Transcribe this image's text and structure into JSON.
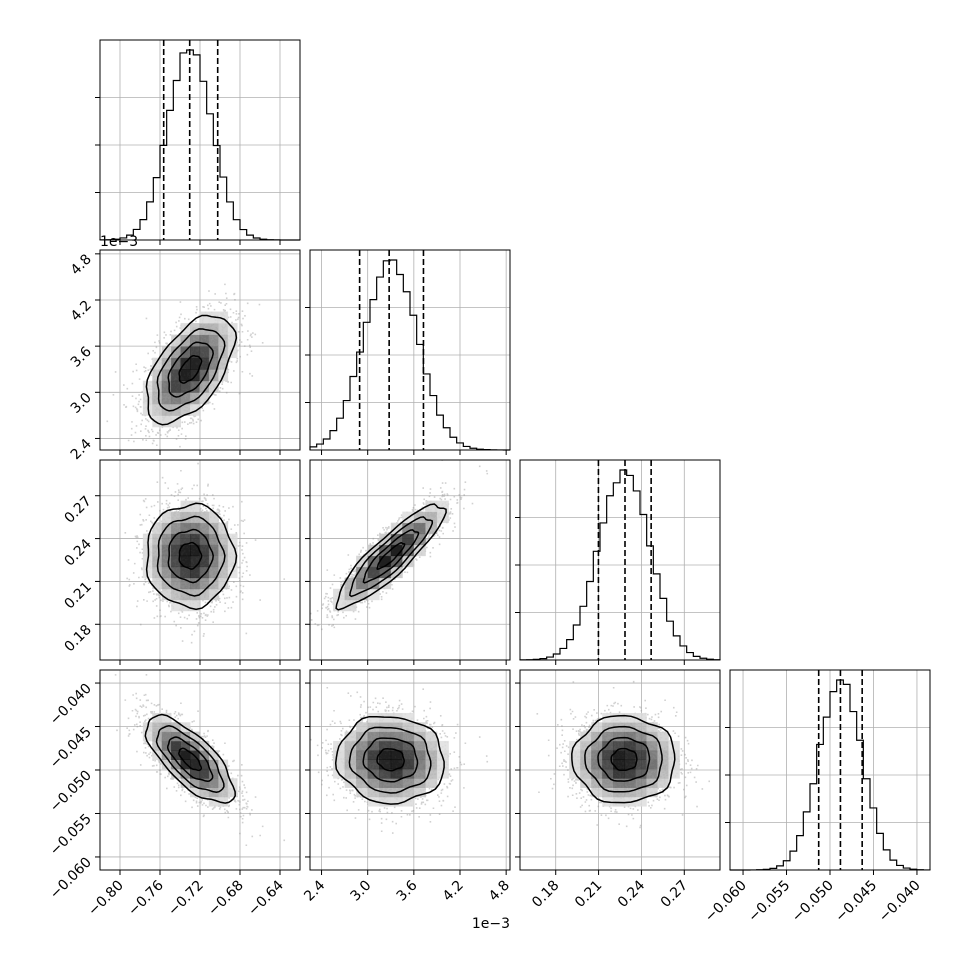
{
  "chart_data": {
    "type": "corner",
    "grid": true,
    "parameters": [
      {
        "index": 0,
        "range": [
          -0.82,
          -0.62
        ],
        "ticks": [
          -0.8,
          -0.76,
          -0.72,
          -0.68,
          -0.64
        ],
        "tick_labels": [
          "−0.80",
          "−0.76",
          "−0.72",
          "−0.68",
          "−0.64"
        ],
        "mean": -0.73,
        "sd": 0.022,
        "quantiles": [
          -0.7563,
          -0.7303,
          -0.7023
        ]
      },
      {
        "index": 1,
        "range": [
          2.25,
          4.85
        ],
        "scale_label": "1e−3",
        "ticks": [
          2.4,
          3.0,
          3.6,
          4.2,
          4.8
        ],
        "tick_labels": [
          "2.4",
          "3.0",
          "3.6",
          "4.2",
          "4.8"
        ],
        "mean": 3.3,
        "sd": 0.35,
        "quantiles": [
          2.895,
          3.279,
          3.725
        ]
      },
      {
        "index": 2,
        "range": [
          0.155,
          0.295
        ],
        "ticks": [
          0.18,
          0.21,
          0.24,
          0.27
        ],
        "tick_labels": [
          "0.18",
          "0.21",
          "0.24",
          "0.27"
        ],
        "mean": 0.228,
        "sd": 0.018,
        "quantiles": [
          0.2099,
          0.2285,
          0.2468
        ]
      },
      {
        "index": 3,
        "range": [
          -0.0615,
          -0.0385
        ],
        "ticks": [
          -0.06,
          -0.055,
          -0.05,
          -0.045,
          -0.04
        ],
        "tick_labels": [
          "−0.060",
          "−0.055",
          "−0.050",
          "−0.045",
          "−0.040"
        ],
        "mean": -0.0488,
        "sd": 0.0025,
        "quantiles": [
          -0.0513,
          -0.0488,
          -0.0463
        ]
      }
    ],
    "correlations": [
      {
        "row": 1,
        "col": 0,
        "rho": 0.55
      },
      {
        "row": 2,
        "col": 0,
        "rho": 0.0
      },
      {
        "row": 2,
        "col": 1,
        "rho": 0.88
      },
      {
        "row": 3,
        "col": 0,
        "rho": -0.72
      },
      {
        "row": 3,
        "col": 1,
        "rho": -0.05
      },
      {
        "row": 3,
        "col": 2,
        "rho": 0.0
      }
    ],
    "scale_labels": [
      {
        "text": "1e−3",
        "where": "row-1-y-axis"
      },
      {
        "text": "1e−3",
        "where": "col-1-x-axis"
      }
    ],
    "contour_levels_sigma": [
      0.5,
      1.0,
      1.5,
      2.0
    ],
    "quantile_line_style": "dashed",
    "histogram_style": "step"
  }
}
